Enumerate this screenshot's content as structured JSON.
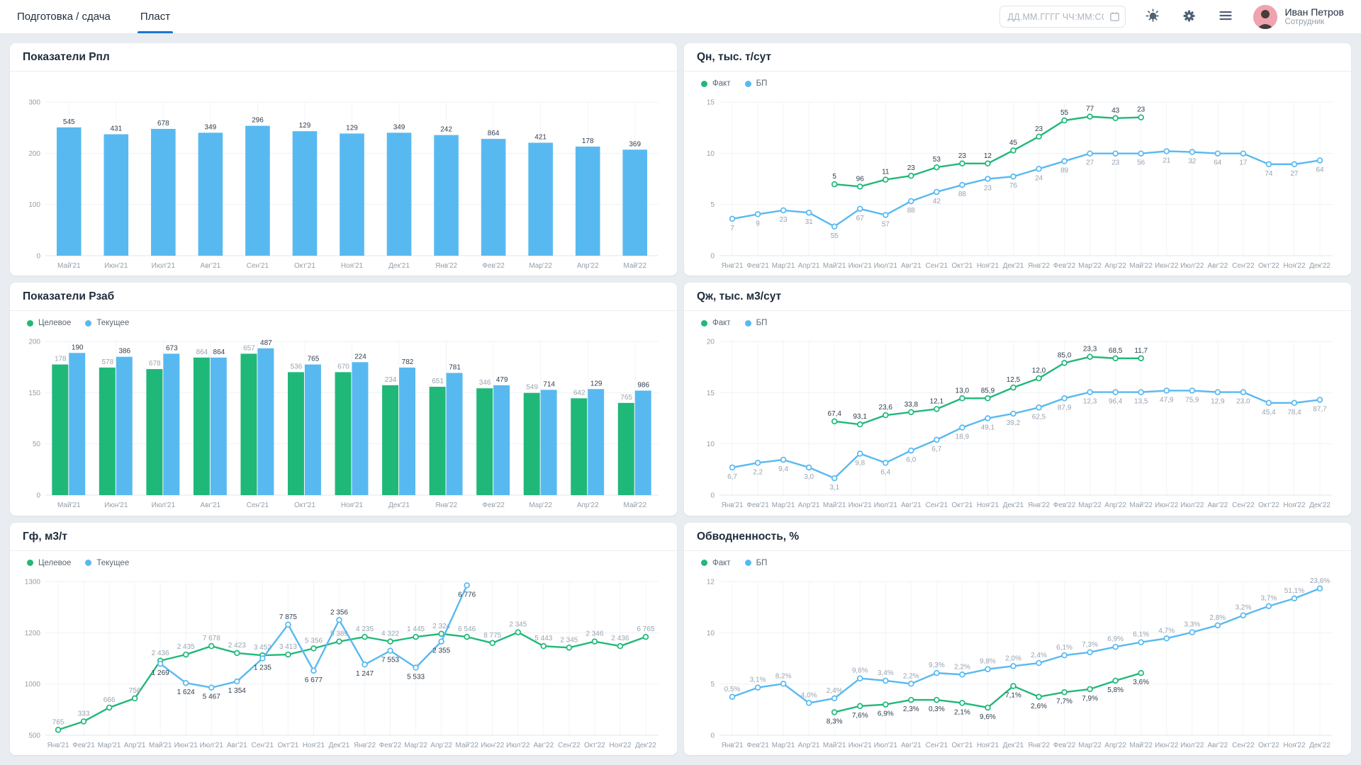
{
  "header": {
    "tabs": [
      {
        "label": "Подготовка / сдача",
        "active": false
      },
      {
        "label": "Пласт",
        "active": true
      }
    ],
    "datetime_placeholder": "ДД.ММ.ГГГГ ЧЧ:ММ:СС",
    "icons": [
      "calendar-icon",
      "brightness-icon",
      "settings-icon",
      "list-icon"
    ],
    "user": {
      "name": "Иван Петров",
      "role": "Сотрудник"
    }
  },
  "colors": {
    "green": "#1fb878",
    "blue": "#58b9f1",
    "accent_blue": "#1b77d4",
    "label_dark": "#303e4e",
    "label_grey": "#9aa4b0"
  },
  "charts": [
    {
      "title": "Показатели Рпл",
      "type": "bar",
      "legend": [],
      "y_ticks": [
        "300",
        "200",
        "100",
        "0"
      ],
      "x_labels": [
        "Май'21",
        "Июн'21",
        "Июл'21",
        "Авг'21",
        "Сен'21",
        "Окт'21",
        "Ноя'21",
        "Дек'21",
        "Янв'22",
        "Фев'22",
        "Мар'22",
        "Апр'22",
        "Май'22"
      ],
      "series": [
        {
          "name": "Рпл",
          "color": "#58b9f1",
          "label_color": "#303e4e",
          "start": 0,
          "labels": [
            "545",
            "431",
            "678",
            "349",
            "296",
            "129",
            "129",
            "349",
            "242",
            "864",
            "421",
            "178",
            "369"
          ],
          "y_frac": [
            0.835,
            0.79,
            0.825,
            0.8,
            0.845,
            0.81,
            0.795,
            0.8,
            0.785,
            0.76,
            0.735,
            0.71,
            0.69
          ]
        }
      ]
    },
    {
      "title": "Qн, тыс. т/сут",
      "type": "line",
      "legend": [
        {
          "label": "Факт",
          "color": "#1fb878"
        },
        {
          "label": "БП",
          "color": "#58b9f1"
        }
      ],
      "y_ticks": [
        "15",
        "10",
        "5",
        "0"
      ],
      "x_labels": [
        "Янв'21",
        "Фев'21",
        "Мар'21",
        "Апр'21",
        "Май'21",
        "Июн'21",
        "Июл'21",
        "Авг'21",
        "Сен'21",
        "Окт'21",
        "Ноя'21",
        "Дек'21",
        "Янв'22",
        "Фев'22",
        "Мар'22",
        "Апр'22",
        "Май'22",
        "Июн'22",
        "Июл'22",
        "Авг'22",
        "Сен'22",
        "Окт'22",
        "Ноя'22",
        "Дек'22"
      ],
      "series": [
        {
          "name": "Факт",
          "color": "#1fb878",
          "label_color": "#303e4e",
          "label_pos": "above",
          "start": 4,
          "labels": [
            "5",
            "96",
            "11",
            "23",
            "53",
            "23",
            "12",
            "45",
            "23",
            "55",
            "77",
            "43",
            "23"
          ],
          "y_frac": [
            0.465,
            0.45,
            0.495,
            0.52,
            0.575,
            0.6,
            0.6,
            0.685,
            0.775,
            0.88,
            0.905,
            0.895,
            0.9
          ]
        },
        {
          "name": "БП",
          "color": "#58b9f1",
          "label_color": "#9aa4b0",
          "label_pos": "below",
          "start": 0,
          "labels": [
            "7",
            "9",
            "23",
            "31",
            "55",
            "67",
            "57",
            "88",
            "42",
            "88",
            "23",
            "76",
            "24",
            "89",
            "27",
            "23",
            "56",
            "21",
            "32",
            "64",
            "17",
            "74",
            "27",
            "64"
          ],
          "y_frac": [
            0.24,
            0.27,
            0.295,
            0.28,
            0.19,
            0.305,
            0.265,
            0.355,
            0.415,
            0.46,
            0.5,
            0.515,
            0.565,
            0.615,
            0.665,
            0.665,
            0.665,
            0.68,
            0.675,
            0.665,
            0.665,
            0.595,
            0.595,
            0.62
          ]
        }
      ]
    },
    {
      "title": "Показатели Рзаб",
      "type": "grouped-bar",
      "legend": [
        {
          "label": "Целевое",
          "color": "#1fb878"
        },
        {
          "label": "Текущее",
          "color": "#58b9f1"
        }
      ],
      "y_ticks": [
        "200",
        "150",
        "50",
        "0"
      ],
      "x_labels": [
        "Май'21",
        "Июн'21",
        "Июл'21",
        "Авг'21",
        "Сен'21",
        "Окт'21",
        "Ноя'21",
        "Дек'21",
        "Янв'22",
        "Фев'22",
        "Мар'22",
        "Апр'22",
        "Май'22"
      ],
      "series": [
        {
          "name": "Целевое",
          "color": "#1fb878",
          "label_color": "#9aa4b0",
          "start": 0,
          "labels": [
            "178",
            "578",
            "678",
            "864",
            "657",
            "536",
            "670",
            "234",
            "651",
            "346",
            "549",
            "642",
            "765"
          ],
          "y_frac": [
            0.85,
            0.83,
            0.82,
            0.895,
            0.92,
            0.8,
            0.8,
            0.715,
            0.705,
            0.695,
            0.665,
            0.63,
            0.6
          ]
        },
        {
          "name": "Текущее",
          "color": "#58b9f1",
          "label_color": "#303e4e",
          "start": 0,
          "labels": [
            "190",
            "386",
            "673",
            "864",
            "487",
            "765",
            "224",
            "782",
            "781",
            "479",
            "714",
            "129",
            "986"
          ],
          "y_frac": [
            0.925,
            0.9,
            0.92,
            0.895,
            0.955,
            0.85,
            0.865,
            0.83,
            0.795,
            0.715,
            0.685,
            0.69,
            0.68
          ]
        }
      ]
    },
    {
      "title": "Qж, тыс. м3/сут",
      "type": "line",
      "legend": [
        {
          "label": "Факт",
          "color": "#1fb878"
        },
        {
          "label": "БП",
          "color": "#58b9f1"
        }
      ],
      "y_ticks": [
        "20",
        "15",
        "10",
        "0"
      ],
      "x_labels": [
        "Янв'21",
        "Фев'21",
        "Мар'21",
        "Апр'21",
        "Май'21",
        "Июн'21",
        "Июл'21",
        "Авг'21",
        "Сен'21",
        "Окт'21",
        "Ноя'21",
        "Дек'21",
        "Янв'22",
        "Фев'22",
        "Мар'22",
        "Апр'22",
        "Май'22",
        "Июн'22",
        "Июл'22",
        "Авг'22",
        "Сен'22",
        "Окт'22",
        "Ноя'22",
        "Дек'22"
      ],
      "series": [
        {
          "name": "Факт",
          "color": "#1fb878",
          "label_color": "#303e4e",
          "label_pos": "above",
          "start": 4,
          "labels": [
            "67,4",
            "93,1",
            "23,6",
            "33,8",
            "12,1",
            "13,0",
            "85,9",
            "12,5",
            "12,0",
            "85,0",
            "23,3",
            "68,5",
            "11,7"
          ],
          "y_frac": [
            0.48,
            0.46,
            0.52,
            0.54,
            0.56,
            0.63,
            0.63,
            0.7,
            0.76,
            0.86,
            0.9,
            0.89,
            0.89
          ]
        },
        {
          "name": "БП",
          "color": "#58b9f1",
          "label_color": "#9aa4b0",
          "label_pos": "below",
          "start": 0,
          "labels": [
            "6,7",
            "2,2",
            "9,4",
            "3,0",
            "3,1",
            "9,8",
            "6,4",
            "6,0",
            "6,7",
            "18,9",
            "49,1",
            "39,2",
            "62,5",
            "87,9",
            "12,3",
            "96,4",
            "13,5",
            "47,9",
            "75,9",
            "12,9",
            "23,0",
            "45,4",
            "78,4",
            "87,7"
          ],
          "y_frac": [
            0.18,
            0.21,
            0.23,
            0.18,
            0.11,
            0.27,
            0.21,
            0.29,
            0.36,
            0.44,
            0.5,
            0.53,
            0.57,
            0.63,
            0.67,
            0.67,
            0.67,
            0.68,
            0.68,
            0.67,
            0.67,
            0.6,
            0.6,
            0.62
          ]
        }
      ]
    },
    {
      "title": "Гф, м3/т",
      "type": "line",
      "legend": [
        {
          "label": "Целевое",
          "color": "#1fb878"
        },
        {
          "label": "Текущее",
          "color": "#58b9f1"
        }
      ],
      "y_ticks": [
        "1300",
        "1200",
        "1000",
        "500"
      ],
      "x_labels": [
        "Янв'21",
        "Фев'21",
        "Мар'21",
        "Апр'21",
        "Май'21",
        "Июн'21",
        "Июл'21",
        "Авг'21",
        "Сен'21",
        "Окт'21",
        "Ноя'21",
        "Дек'21",
        "Янв'22",
        "Фев'22",
        "Мар'22",
        "Апр'22",
        "Май'22",
        "Июн'22",
        "Июл'22",
        "Авг'22",
        "Сен'22",
        "Окт'22",
        "Ноя'22",
        "Дек'22"
      ],
      "series": [
        {
          "name": "Целевое",
          "color": "#1fb878",
          "label_color": "#9aa4b0",
          "label_pos": "above",
          "start": 0,
          "labels": [
            "765",
            "333",
            "666",
            "756",
            "2 436",
            "2 435",
            "7 678",
            "2 423",
            "3 452",
            "3 413",
            "5 356",
            "5 389",
            "4 235",
            "4 322",
            "1 445",
            "2 324",
            "6 546",
            "8 775",
            "2 345",
            "5 443",
            "2 345",
            "2 346",
            "2 436",
            "6 765"
          ],
          "y_frac": [
            0.035,
            0.09,
            0.18,
            0.24,
            0.485,
            0.525,
            0.58,
            0.535,
            0.52,
            0.525,
            0.565,
            0.61,
            0.64,
            0.61,
            0.64,
            0.66,
            0.64,
            0.6,
            0.67,
            0.58,
            0.57,
            0.61,
            0.58,
            0.64
          ]
        },
        {
          "name": "Текущее",
          "color": "#58b9f1",
          "label_color": "#303e4e",
          "label_pos": "below",
          "start": 4,
          "label_overrides": {
            "5": "above",
            "7": "above"
          },
          "labels": [
            "1 269",
            "1 624",
            "5 467",
            "1 354",
            "1 235",
            "7 875",
            "6 677",
            "2 356",
            "1 247",
            "7 553",
            "5 533",
            "2 355",
            "6 776"
          ],
          "y_frac": [
            0.465,
            0.34,
            0.31,
            0.35,
            0.5,
            0.72,
            0.42,
            0.75,
            0.46,
            0.55,
            0.44,
            0.61,
            0.975
          ]
        }
      ]
    },
    {
      "title": "Обводненность, %",
      "type": "line",
      "legend": [
        {
          "label": "Факт",
          "color": "#1fb878"
        },
        {
          "label": "БП",
          "color": "#58b9f1"
        }
      ],
      "y_ticks": [
        "12",
        "10",
        "5",
        "0"
      ],
      "x_labels": [
        "Янв'21",
        "Фев'21",
        "Мар'21",
        "Апр'21",
        "Май'21",
        "Июн'21",
        "Июл'21",
        "Авг'21",
        "Сен'21",
        "Окт'21",
        "Ноя'21",
        "Дек'21",
        "Янв'22",
        "Фев'22",
        "Мар'22",
        "Апр'22",
        "Май'22",
        "Июн'22",
        "Июл'22",
        "Авг'22",
        "Сен'22",
        "Окт'22",
        "Ноя'22",
        "Дек'22"
      ],
      "series": [
        {
          "name": "Факт",
          "color": "#1fb878",
          "label_color": "#303e4e",
          "label_pos": "below",
          "start": 4,
          "labels": [
            "8,3%",
            "7,6%",
            "6,9%",
            "2,3%",
            "0,3%",
            "2,1%",
            "9,6%",
            "7,1%",
            "2,6%",
            "7,7%",
            "7,9%",
            "5,8%",
            "3,6%"
          ],
          "y_frac": [
            0.15,
            0.19,
            0.2,
            0.23,
            0.23,
            0.21,
            0.18,
            0.32,
            0.25,
            0.28,
            0.3,
            0.355,
            0.405
          ]
        },
        {
          "name": "БП",
          "color": "#58b9f1",
          "label_color": "#9aa4b0",
          "label_pos": "above",
          "start": 0,
          "labels": [
            "0,5%",
            "3,1%",
            "8,2%",
            "4,0%",
            "2,4%",
            "9,6%",
            "3,4%",
            "2,2%",
            "9,3%",
            "2,2%",
            "9,8%",
            "2,0%",
            "2,4%",
            "6,1%",
            "7,3%",
            "6,9%",
            "6,1%",
            "4,7%",
            "3,3%",
            "2,8%",
            "3,2%",
            "3,7%",
            "51,1%",
            "23,6%"
          ],
          "y_frac": [
            0.25,
            0.31,
            0.335,
            0.21,
            0.24,
            0.37,
            0.355,
            0.335,
            0.405,
            0.395,
            0.43,
            0.45,
            0.47,
            0.52,
            0.54,
            0.575,
            0.605,
            0.63,
            0.67,
            0.715,
            0.78,
            0.84,
            0.89,
            0.955
          ]
        }
      ]
    }
  ]
}
